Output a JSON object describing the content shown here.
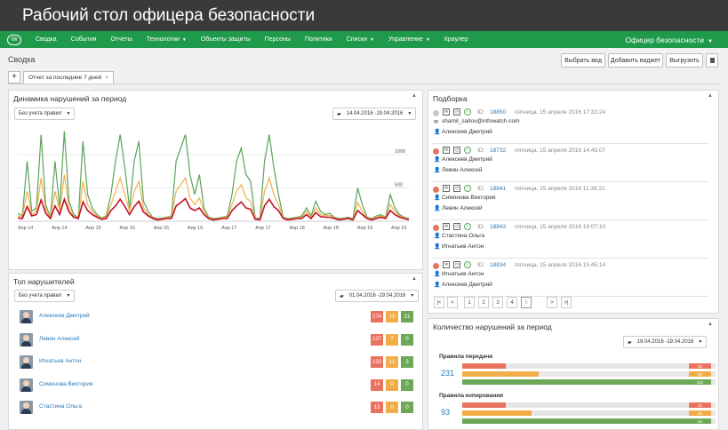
{
  "app_title": "Рабочий стол офицера безопасности",
  "nav": {
    "logo_text": "IW",
    "items": [
      {
        "label": "Сводка",
        "dropdown": false
      },
      {
        "label": "События",
        "dropdown": false
      },
      {
        "label": "Отчеты",
        "dropdown": false
      },
      {
        "label": "Технологии",
        "dropdown": true
      },
      {
        "label": "Объекты защиты",
        "dropdown": false
      },
      {
        "label": "Персоны",
        "dropdown": false
      },
      {
        "label": "Политики",
        "dropdown": false
      },
      {
        "label": "Списки",
        "dropdown": true
      },
      {
        "label": "Управление",
        "dropdown": true
      },
      {
        "label": "Краулер",
        "dropdown": false
      }
    ],
    "user": "Офицер безопасности"
  },
  "page": {
    "breadcrumb": "Сводка",
    "buttons": {
      "choose_view": "Выбрать вид",
      "add_widget": "Добавить виджет",
      "export": "Выгрузить"
    },
    "tab_add": "+",
    "tab_label": "Отчет за последние 7 дней",
    "tab_close": "×"
  },
  "dynamics": {
    "title": "Динамика нарушений за период",
    "filter": "Без учета правил",
    "date_range": "14.04.2016 -19.04.2016",
    "chart_data": {
      "type": "line",
      "x_tick_labels": [
        "Апр 14",
        "Апр 14",
        "Апр 15",
        "Апр 15",
        "Апр 16",
        "Апр 16",
        "Апр 17",
        "Апр 17",
        "Апр 18",
        "Апр 18",
        "Апр 19",
        "Апр 19"
      ],
      "y_tick_labels": [
        "500",
        "1000"
      ],
      "ylim": [
        0,
        1400
      ],
      "grid": true,
      "series": [
        {
          "color": "#5aa35a",
          "values": [
            120,
            80,
            900,
            150,
            200,
            1300,
            250,
            60,
            900,
            200,
            1350,
            300,
            100,
            60,
            1200,
            400,
            200,
            100,
            50,
            80,
            400,
            900,
            1300,
            800,
            200,
            900,
            1200,
            300,
            150,
            60,
            40,
            50,
            60,
            80,
            900,
            1100,
            1300,
            700,
            400,
            700,
            200,
            60,
            40,
            50,
            60,
            80,
            400,
            900,
            1100,
            700,
            600,
            50,
            40,
            900,
            1300,
            800,
            400,
            60,
            40,
            50,
            60,
            80,
            200,
            80,
            300,
            150,
            100,
            120,
            60,
            40,
            50,
            60,
            40,
            500,
            250,
            60,
            40,
            80,
            100,
            60,
            400,
            200,
            100,
            60,
            40
          ]
        },
        {
          "color": "#f1b04a",
          "values": [
            80,
            60,
            450,
            100,
            150,
            650,
            180,
            50,
            450,
            150,
            700,
            200,
            80,
            50,
            600,
            250,
            150,
            80,
            40,
            60,
            250,
            450,
            650,
            400,
            150,
            450,
            600,
            200,
            100,
            50,
            30,
            40,
            50,
            60,
            450,
            550,
            650,
            350,
            250,
            350,
            150,
            50,
            30,
            40,
            50,
            60,
            250,
            450,
            550,
            350,
            300,
            40,
            30,
            450,
            650,
            400,
            250,
            50,
            30,
            40,
            50,
            60,
            150,
            60,
            200,
            100,
            80,
            90,
            50,
            30,
            40,
            50,
            30,
            280,
            150,
            50,
            30,
            60,
            80,
            50,
            250,
            150,
            80,
            50,
            30
          ]
        },
        {
          "color": "#c0112b",
          "values": [
            50,
            40,
            220,
            80,
            100,
            320,
            120,
            40,
            230,
            100,
            330,
            140,
            60,
            40,
            290,
            160,
            100,
            60,
            30,
            40,
            160,
            230,
            330,
            220,
            100,
            220,
            300,
            140,
            80,
            40,
            20,
            30,
            40,
            40,
            230,
            280,
            340,
            200,
            160,
            200,
            100,
            40,
            20,
            30,
            40,
            40,
            160,
            230,
            290,
            200,
            180,
            30,
            20,
            230,
            330,
            220,
            160,
            40,
            20,
            30,
            40,
            40,
            100,
            40,
            130,
            70,
            60,
            60,
            40,
            20,
            30,
            40,
            20,
            160,
            100,
            40,
            20,
            40,
            60,
            40,
            160,
            100,
            60,
            40,
            20
          ]
        }
      ]
    }
  },
  "top": {
    "title": "Топ нарушителей",
    "filter": "Без учета правил",
    "date_range": "01.04.2016 -19.04.2016",
    "rows": [
      {
        "name": "Алексеев Дмитрий",
        "red": "274",
        "yellow": "12",
        "green": "21"
      },
      {
        "name": "Левин Алексей",
        "red": "137",
        "yellow": "7",
        "green": "0"
      },
      {
        "name": "Игнатьев Антон",
        "red": "133",
        "yellow": "12",
        "green": "3"
      },
      {
        "name": "Симонова Виктория",
        "red": "14",
        "yellow": "0",
        "green": "0"
      },
      {
        "name": "Стастина Ольга",
        "red": "13",
        "yellow": "0",
        "green": "0"
      }
    ]
  },
  "picks": {
    "title": "Подборка",
    "id_label": "ID:",
    "items": [
      {
        "status": "#c8c8c8",
        "id": "18850",
        "date": "пятница, 15 апреля 2016 17:33:24",
        "line1": "shamil_saitov@infowatch.com",
        "line1_icon": "mail",
        "line2": "Алексеев Дмитрий"
      },
      {
        "status": "#e8735f",
        "id": "18732",
        "date": "пятница, 15 апреля 2016 14:45:07",
        "line1": "Алексеев Дмитрий",
        "line1_icon": "user",
        "line2": "Левин Алексей"
      },
      {
        "status": "#e8735f",
        "id": "18841",
        "date": "пятница, 15 апреля 2016 11:39:21",
        "line1": "Симонова Виктория",
        "line1_icon": "user",
        "line2": "Левин Алексей"
      },
      {
        "status": "#e8735f",
        "id": "18843",
        "date": "пятница, 15 апреля 2016 19:07:10",
        "line1": "Стастина Ольга",
        "line1_icon": "user",
        "line2": "Игнатьев Антон"
      },
      {
        "status": "#e8735f",
        "id": "18834",
        "date": "пятница, 15 апреля 2016 15:45:14",
        "line1": "Игнатьев Антон",
        "line1_icon": "user",
        "line2": "Алексеев Дмитрий"
      }
    ],
    "pages": [
      "1",
      "2",
      "3",
      "4",
      "5"
    ],
    "first": "|<",
    "prev": "<",
    "next": ">",
    "last": ">|"
  },
  "count": {
    "title": "Количество нарушений за период",
    "date_range": "19.04.2016 -19.04.2016",
    "groups": [
      {
        "label": "Правила передачи",
        "total": "231",
        "bars": [
          {
            "color": "#e8735f",
            "value": "29",
            "fraction": 0.19
          },
          {
            "color": "#f2ad48",
            "value": "50",
            "fraction": 0.33
          },
          {
            "color": "#6da857",
            "value": "152",
            "fraction": 1.0
          }
        ]
      },
      {
        "label": "Правила копирования",
        "total": "93",
        "bars": [
          {
            "color": "#e8735f",
            "value": "12",
            "fraction": 0.19
          },
          {
            "color": "#f2ad48",
            "value": "19",
            "fraction": 0.3
          },
          {
            "color": "#6da857",
            "value": "62",
            "fraction": 1.0
          }
        ]
      }
    ]
  }
}
